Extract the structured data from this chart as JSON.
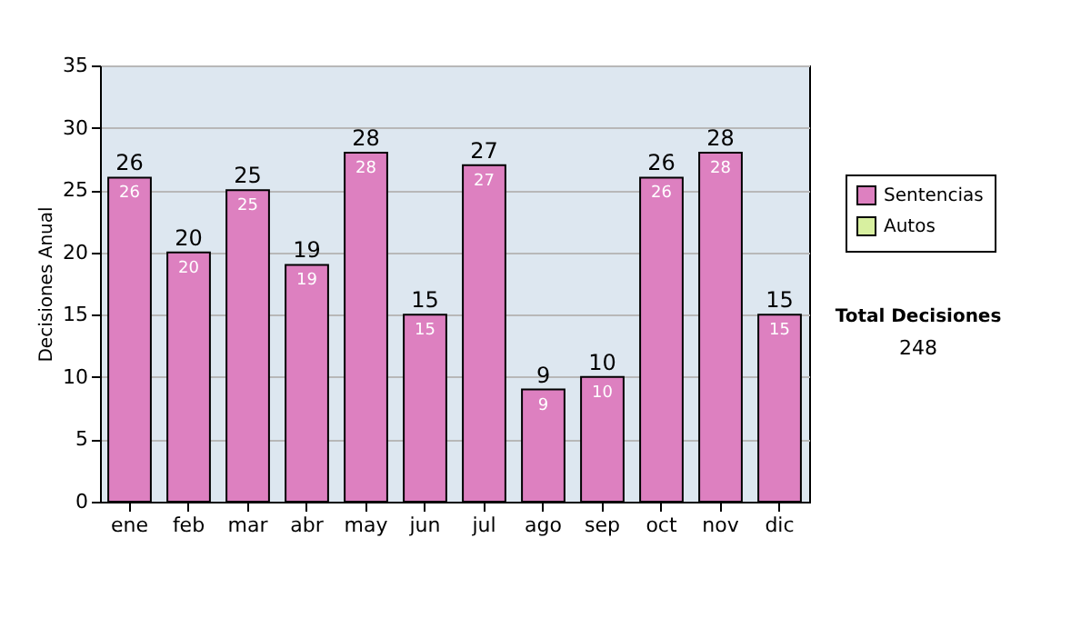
{
  "chart_data": {
    "type": "bar",
    "stacked": true,
    "ylabel": "Decisiones Anual",
    "categories": [
      "ene",
      "feb",
      "mar",
      "abr",
      "may",
      "jun",
      "jul",
      "ago",
      "sep",
      "oct",
      "nov",
      "dic"
    ],
    "series": [
      {
        "name": "Sentencias",
        "color": "#dd80c0",
        "values": [
          26,
          20,
          25,
          19,
          28,
          15,
          27,
          9,
          10,
          26,
          28,
          15
        ],
        "value_labels": [
          "26",
          "20",
          "25",
          "19",
          "28",
          "15",
          "27",
          "9",
          "10",
          "26",
          "28",
          "15"
        ]
      },
      {
        "name": "Autos",
        "color": "#d8f0a0",
        "values": [
          0,
          0,
          0,
          0,
          0,
          0,
          0,
          0,
          0,
          0,
          0,
          0
        ]
      }
    ],
    "totals": [
      "26",
      "20",
      "25",
      "19",
      "28",
      "15",
      "27",
      "9",
      "10",
      "26",
      "28",
      "15"
    ],
    "ylim": [
      0,
      35
    ],
    "yticks": [
      0,
      5,
      10,
      15,
      20,
      25,
      30,
      35
    ],
    "grid": "y",
    "legend": "right",
    "annotations": [
      "Total Decisiones",
      "248"
    ]
  }
}
